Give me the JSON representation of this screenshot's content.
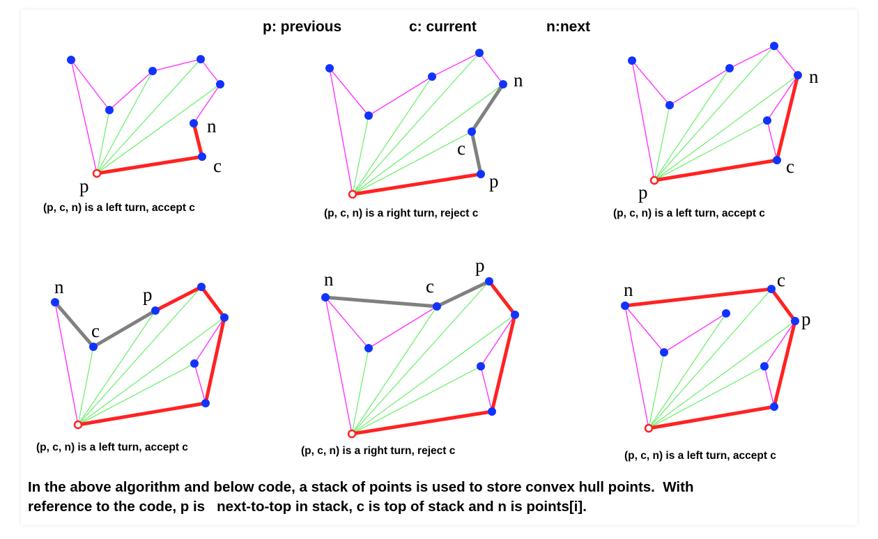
{
  "legend": {
    "previous": "p: previous",
    "current": "c: current",
    "next": "n:next"
  },
  "colors": {
    "hull_edge": "#ff2222",
    "candidate_edge": "#808080",
    "polygon_edge": "#ff33ff",
    "fan_line": "#66ee66",
    "point": "#1133ff",
    "anchor_point": "#ff2222"
  },
  "panels": [
    {
      "caption": "(p, c, n) is a left turn, accept c",
      "labels": {
        "p": "p",
        "c": "c",
        "n": "n"
      }
    },
    {
      "caption": "(p, c, n) is a right turn, reject c",
      "labels": {
        "p": "p",
        "c": "c",
        "n": "n"
      }
    },
    {
      "caption": "(p, c, n) is a left turn, accept c",
      "labels": {
        "p": "p",
        "c": "c",
        "n": "n"
      }
    },
    {
      "caption": "(p, c, n) is a left turn, accept c",
      "labels": {
        "p": "p",
        "c": "c",
        "n": "n"
      }
    },
    {
      "caption": "(p, c, n) is a right turn, reject c",
      "labels": {
        "p": "p",
        "c": "c",
        "n": "n"
      }
    },
    {
      "caption": "(p, c, n) is a left turn, accept c",
      "labels": {
        "p": "p",
        "c": "c",
        "n": "n"
      }
    }
  ],
  "footer": {
    "line1": "In the above algorithm and below code, a stack of points is used to store convex hull points.  With",
    "line2": "reference to the code, p is   next-to-top in stack, c is top of stack and n is points[i]."
  }
}
